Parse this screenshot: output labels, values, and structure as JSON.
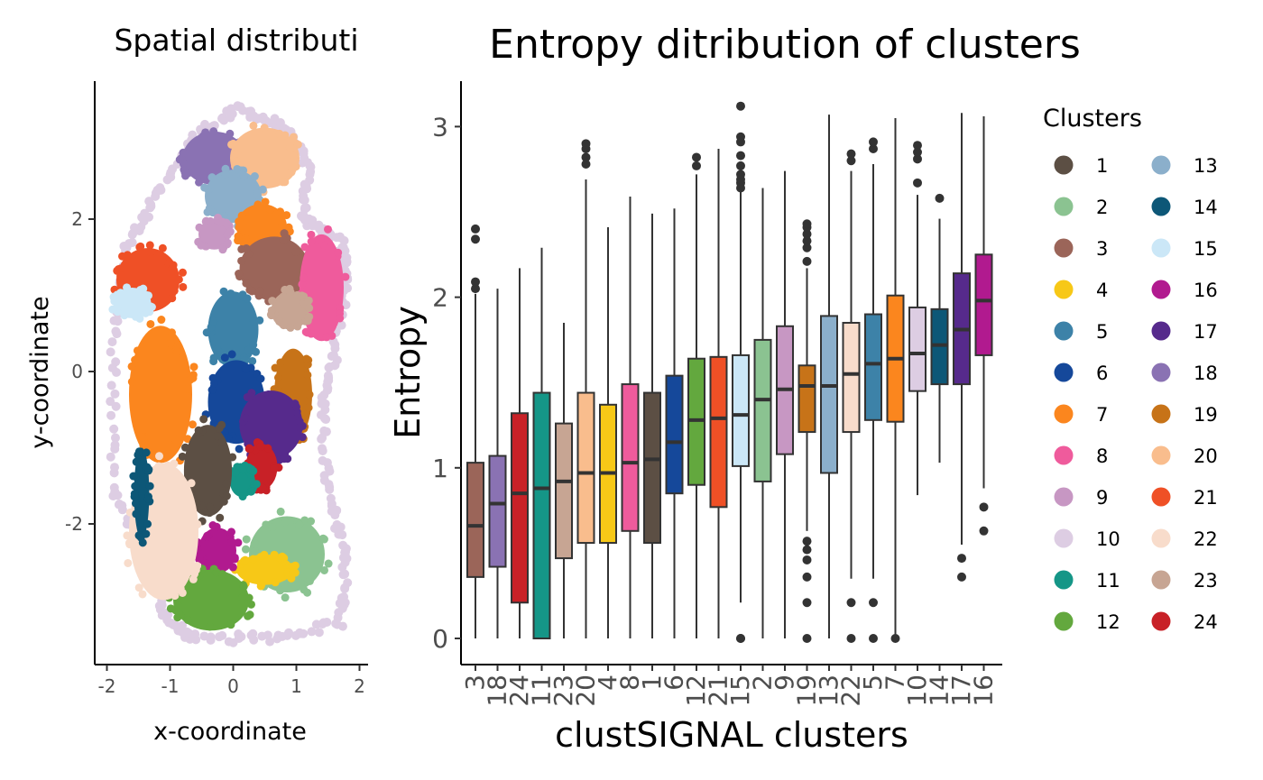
{
  "chart_data": [
    {
      "type": "scatter",
      "title": "Spatial distributi",
      "xlabel": "x-coordinate",
      "ylabel": "y-coordinate",
      "xlim": [
        -2.1,
        2.1
      ],
      "ylim": [
        -3.8,
        3.8
      ],
      "xticks": [
        "-2",
        "-1",
        "0",
        "1",
        "2"
      ],
      "yticks": [
        "-2",
        "0",
        "2"
      ],
      "regions": [
        {
          "cluster": "18",
          "x": -0.3,
          "y": 2.8,
          "rx": 0.5,
          "ry": 0.35
        },
        {
          "cluster": "20",
          "x": 0.5,
          "y": 2.8,
          "rx": 0.55,
          "ry": 0.4
        },
        {
          "cluster": "13",
          "x": 0.0,
          "y": 2.3,
          "rx": 0.45,
          "ry": 0.35
        },
        {
          "cluster": "7",
          "x": 0.45,
          "y": 1.9,
          "rx": 0.4,
          "ry": 0.3
        },
        {
          "cluster": "3",
          "x": 0.65,
          "y": 1.35,
          "rx": 0.55,
          "ry": 0.42
        },
        {
          "cluster": "8",
          "x": 1.4,
          "y": 1.1,
          "rx": 0.35,
          "ry": 0.7
        },
        {
          "cluster": "21",
          "x": -1.35,
          "y": 1.2,
          "rx": 0.5,
          "ry": 0.42
        },
        {
          "cluster": "15",
          "x": -1.6,
          "y": 0.9,
          "rx": 0.3,
          "ry": 0.2
        },
        {
          "cluster": "23",
          "x": 0.9,
          "y": 0.8,
          "rx": 0.3,
          "ry": 0.25
        },
        {
          "cluster": "5",
          "x": 0.0,
          "y": 0.55,
          "rx": 0.4,
          "ry": 0.5
        },
        {
          "cluster": "7",
          "x": -1.15,
          "y": -0.3,
          "rx": 0.5,
          "ry": 0.9
        },
        {
          "cluster": "6",
          "x": 0.05,
          "y": -0.4,
          "rx": 0.45,
          "ry": 0.55
        },
        {
          "cluster": "19",
          "x": 0.95,
          "y": -0.3,
          "rx": 0.3,
          "ry": 0.6
        },
        {
          "cluster": "17",
          "x": 0.6,
          "y": -0.7,
          "rx": 0.5,
          "ry": 0.45
        },
        {
          "cluster": "24",
          "x": 0.45,
          "y": -1.25,
          "rx": 0.25,
          "ry": 0.3
        },
        {
          "cluster": "11",
          "x": 0.15,
          "y": -1.45,
          "rx": 0.2,
          "ry": 0.2
        },
        {
          "cluster": "1",
          "x": -0.4,
          "y": -1.3,
          "rx": 0.38,
          "ry": 0.6
        },
        {
          "cluster": "2",
          "x": 0.85,
          "y": -2.4,
          "rx": 0.6,
          "ry": 0.5
        },
        {
          "cluster": "4",
          "x": 0.5,
          "y": -2.6,
          "rx": 0.45,
          "ry": 0.2
        },
        {
          "cluster": "16",
          "x": -0.25,
          "y": -2.35,
          "rx": 0.3,
          "ry": 0.3
        },
        {
          "cluster": "12",
          "x": -0.35,
          "y": -3.0,
          "rx": 0.6,
          "ry": 0.4
        },
        {
          "cluster": "22",
          "x": -1.1,
          "y": -2.1,
          "rx": 0.55,
          "ry": 0.9
        },
        {
          "cluster": "14",
          "x": -1.45,
          "y": -1.6,
          "rx": 0.12,
          "ry": 0.6
        },
        {
          "cluster": "9",
          "x": -0.3,
          "y": 1.8,
          "rx": 0.25,
          "ry": 0.2
        }
      ]
    },
    {
      "type": "box",
      "title": "Entropy ditribution of clusters",
      "xlabel": "clustSIGNAL clusters",
      "ylabel": "Entropy",
      "ylim": [
        -0.15,
        3.3
      ],
      "yticks": [
        "0",
        "1",
        "2",
        "3"
      ],
      "legend_title": "Clusters",
      "legend_placement": "right",
      "categories": [
        "3",
        "18",
        "24",
        "11",
        "23",
        "20",
        "4",
        "8",
        "1",
        "6",
        "12",
        "21",
        "15",
        "2",
        "9",
        "19",
        "13",
        "22",
        "5",
        "7",
        "10",
        "14",
        "17",
        "16"
      ],
      "boxes": [
        {
          "cluster": "3",
          "min": 0.0,
          "q1": 0.36,
          "median": 0.66,
          "q3": 1.03,
          "max": 2.02,
          "outliers": [
            2.05,
            2.09,
            2.34,
            2.4
          ]
        },
        {
          "cluster": "18",
          "min": 0.0,
          "q1": 0.42,
          "median": 0.79,
          "q3": 1.07,
          "max": 2.05,
          "outliers": []
        },
        {
          "cluster": "24",
          "min": 0.0,
          "q1": 0.21,
          "median": 0.85,
          "q3": 1.32,
          "max": 2.17,
          "outliers": []
        },
        {
          "cluster": "11",
          "min": 0.0,
          "q1": 0.0,
          "median": 0.88,
          "q3": 1.44,
          "max": 2.29,
          "outliers": []
        },
        {
          "cluster": "23",
          "min": 0.0,
          "q1": 0.47,
          "median": 0.92,
          "q3": 1.26,
          "max": 1.85,
          "outliers": []
        },
        {
          "cluster": "20",
          "min": 0.0,
          "q1": 0.56,
          "median": 0.97,
          "q3": 1.44,
          "max": 2.69,
          "outliers": [
            2.78,
            2.82,
            2.87,
            2.9
          ]
        },
        {
          "cluster": "4",
          "min": 0.0,
          "q1": 0.56,
          "median": 0.97,
          "q3": 1.37,
          "max": 2.41,
          "outliers": []
        },
        {
          "cluster": "8",
          "min": 0.0,
          "q1": 0.63,
          "median": 1.03,
          "q3": 1.49,
          "max": 2.59,
          "outliers": []
        },
        {
          "cluster": "1",
          "min": 0.0,
          "q1": 0.56,
          "median": 1.05,
          "q3": 1.44,
          "max": 2.49,
          "outliers": []
        },
        {
          "cluster": "6",
          "min": 0.0,
          "q1": 0.85,
          "median": 1.15,
          "q3": 1.54,
          "max": 2.52,
          "outliers": []
        },
        {
          "cluster": "12",
          "min": 0.0,
          "q1": 0.9,
          "median": 1.28,
          "q3": 1.64,
          "max": 2.72,
          "outliers": [
            2.77,
            2.82
          ]
        },
        {
          "cluster": "21",
          "min": 0.0,
          "q1": 0.77,
          "median": 1.29,
          "q3": 1.65,
          "max": 2.87,
          "outliers": []
        },
        {
          "cluster": "15",
          "min": 0.21,
          "q1": 1.01,
          "median": 1.31,
          "q3": 1.66,
          "max": 2.62,
          "outliers": [
            0.0,
            0.0,
            2.64,
            2.67,
            2.69,
            2.72,
            2.77,
            2.83,
            2.91,
            2.94,
            3.12
          ]
        },
        {
          "cluster": "2",
          "min": 0.0,
          "q1": 0.92,
          "median": 1.4,
          "q3": 1.75,
          "max": 2.64,
          "outliers": []
        },
        {
          "cluster": "9",
          "min": 0.0,
          "q1": 1.08,
          "median": 1.46,
          "q3": 1.83,
          "max": 2.74,
          "outliers": []
        },
        {
          "cluster": "19",
          "min": 0.63,
          "q1": 1.21,
          "median": 1.48,
          "q3": 1.6,
          "max": 2.17,
          "outliers": [
            0.0,
            0.21,
            0.36,
            0.46,
            0.52,
            0.57,
            2.21,
            2.29,
            2.33,
            2.37,
            2.41,
            2.43
          ]
        },
        {
          "cluster": "13",
          "min": 0.0,
          "q1": 0.97,
          "median": 1.48,
          "q3": 1.89,
          "max": 3.07,
          "outliers": []
        },
        {
          "cluster": "22",
          "min": 0.35,
          "q1": 1.21,
          "median": 1.55,
          "q3": 1.85,
          "max": 2.74,
          "outliers": [
            0.0,
            0.21,
            2.8,
            2.84
          ]
        },
        {
          "cluster": "5",
          "min": 0.35,
          "q1": 1.28,
          "median": 1.61,
          "q3": 1.9,
          "max": 2.78,
          "outliers": [
            0.0,
            0.21,
            2.87,
            2.91
          ]
        },
        {
          "cluster": "7",
          "min": 0.0,
          "q1": 1.27,
          "median": 1.64,
          "q3": 2.01,
          "max": 3.05,
          "outliers": [
            0.0
          ]
        },
        {
          "cluster": "10",
          "min": 0.84,
          "q1": 1.45,
          "median": 1.67,
          "q3": 1.94,
          "max": 2.6,
          "outliers": [
            2.67,
            2.81,
            2.85,
            2.89
          ]
        },
        {
          "cluster": "14",
          "min": 1.03,
          "q1": 1.49,
          "median": 1.72,
          "q3": 1.93,
          "max": 2.46,
          "outliers": [
            2.58
          ]
        },
        {
          "cluster": "17",
          "min": 0.55,
          "q1": 1.49,
          "median": 1.81,
          "q3": 2.14,
          "max": 3.08,
          "outliers": [
            0.36,
            0.47
          ]
        },
        {
          "cluster": "16",
          "min": 0.88,
          "q1": 1.66,
          "median": 1.98,
          "q3": 2.25,
          "max": 3.06,
          "outliers": [
            0.63,
            0.77
          ]
        }
      ],
      "legend": [
        {
          "label": "1",
          "color": "#5c4f44"
        },
        {
          "label": "2",
          "color": "#8bc391"
        },
        {
          "label": "3",
          "color": "#9b6559"
        },
        {
          "label": "4",
          "color": "#f7c817"
        },
        {
          "label": "5",
          "color": "#3d82a8"
        },
        {
          "label": "6",
          "color": "#15489a"
        },
        {
          "label": "7",
          "color": "#fb861e"
        },
        {
          "label": "8",
          "color": "#ef5b9c"
        },
        {
          "label": "9",
          "color": "#c797c3"
        },
        {
          "label": "10",
          "color": "#ddcde3"
        },
        {
          "label": "11",
          "color": "#159687"
        },
        {
          "label": "12",
          "color": "#63a83e"
        },
        {
          "label": "13",
          "color": "#8bafcb"
        },
        {
          "label": "14",
          "color": "#0d5777"
        },
        {
          "label": "15",
          "color": "#cbe7f7"
        },
        {
          "label": "16",
          "color": "#b11a8f"
        },
        {
          "label": "17",
          "color": "#562a8c"
        },
        {
          "label": "18",
          "color": "#8a72b3"
        },
        {
          "label": "19",
          "color": "#c77318"
        },
        {
          "label": "20",
          "color": "#f9bd8d"
        },
        {
          "label": "21",
          "color": "#ef5026"
        },
        {
          "label": "22",
          "color": "#f8dccb"
        },
        {
          "label": "23",
          "color": "#c7a593"
        },
        {
          "label": "24",
          "color": "#c82127"
        }
      ]
    }
  ]
}
